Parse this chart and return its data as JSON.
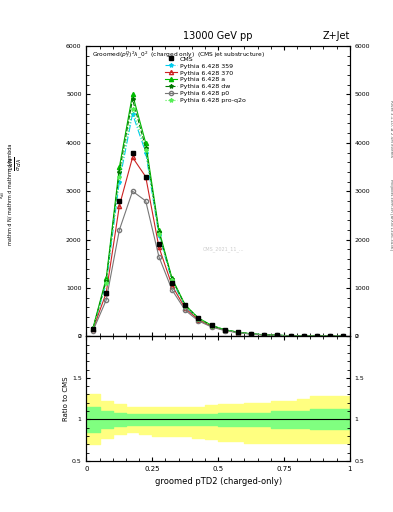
{
  "title_top": "13000 GeV pp",
  "title_right": "Z+Jet",
  "plot_title": "Groomed$(p_T^D)^2\\lambda\\_0^2$  (charged only)  (CMS jet substructure)",
  "xlabel": "groomed pTD2 (charged-only)",
  "right_label_top": "Rivet 3.1.10, ≥ 2.5M events",
  "right_label_bot": "mcplots.cern.ch [arXiv:1306.3436]",
  "cms_x": [
    0.025,
    0.075,
    0.125,
    0.175,
    0.225,
    0.275,
    0.325,
    0.375,
    0.425,
    0.475,
    0.525,
    0.575,
    0.625,
    0.675,
    0.725,
    0.775,
    0.825,
    0.875,
    0.925,
    0.975
  ],
  "cms_y": [
    150,
    900,
    2800,
    3800,
    3300,
    1900,
    1100,
    650,
    380,
    230,
    140,
    90,
    55,
    35,
    25,
    15,
    10,
    7,
    5,
    3
  ],
  "py359_y": [
    160,
    1100,
    3200,
    4600,
    3800,
    2100,
    1150,
    620,
    360,
    215,
    130,
    82,
    50,
    32,
    22,
    14,
    10,
    7,
    4,
    2
  ],
  "py370_y": [
    150,
    900,
    2700,
    3700,
    3300,
    1850,
    1050,
    580,
    345,
    208,
    127,
    80,
    49,
    31,
    21,
    13,
    10,
    7,
    4,
    2
  ],
  "pya_y": [
    180,
    1200,
    3500,
    5000,
    4000,
    2200,
    1200,
    650,
    380,
    228,
    138,
    88,
    53,
    34,
    24,
    15,
    11,
    8,
    5,
    3
  ],
  "pydw_y": [
    170,
    1150,
    3400,
    4900,
    3900,
    2150,
    1180,
    640,
    375,
    224,
    136,
    86,
    52,
    33,
    23,
    14,
    11,
    7,
    4,
    2
  ],
  "pyp0_y": [
    120,
    750,
    2200,
    3000,
    2800,
    1650,
    960,
    540,
    320,
    195,
    120,
    77,
    47,
    30,
    21,
    13,
    9,
    6,
    4,
    2
  ],
  "pyq2o_y": [
    165,
    1100,
    3300,
    4700,
    3850,
    2120,
    1160,
    630,
    368,
    221,
    134,
    84,
    51,
    33,
    22,
    14,
    10,
    7,
    4,
    2
  ],
  "ratio_x_edges": [
    0.0,
    0.05,
    0.1,
    0.15,
    0.2,
    0.25,
    0.3,
    0.35,
    0.4,
    0.45,
    0.5,
    0.55,
    0.6,
    0.65,
    0.7,
    0.75,
    0.8,
    0.85,
    0.9,
    0.95,
    1.0
  ],
  "ratio_green_upper": [
    1.15,
    1.1,
    1.08,
    1.07,
    1.07,
    1.07,
    1.07,
    1.07,
    1.07,
    1.07,
    1.08,
    1.08,
    1.08,
    1.08,
    1.1,
    1.1,
    1.1,
    1.12,
    1.12,
    1.12
  ],
  "ratio_green_lower": [
    0.85,
    0.9,
    0.92,
    0.93,
    0.93,
    0.93,
    0.93,
    0.93,
    0.93,
    0.93,
    0.92,
    0.92,
    0.92,
    0.92,
    0.9,
    0.9,
    0.9,
    0.88,
    0.88,
    0.88
  ],
  "ratio_yellow_upper": [
    1.3,
    1.22,
    1.18,
    1.15,
    1.15,
    1.15,
    1.15,
    1.15,
    1.15,
    1.17,
    1.18,
    1.18,
    1.2,
    1.2,
    1.22,
    1.22,
    1.25,
    1.28,
    1.28,
    1.28
  ],
  "ratio_yellow_lower": [
    0.7,
    0.78,
    0.82,
    0.85,
    0.82,
    0.8,
    0.8,
    0.8,
    0.78,
    0.76,
    0.74,
    0.74,
    0.72,
    0.72,
    0.72,
    0.72,
    0.72,
    0.72,
    0.72,
    0.72
  ],
  "color_359": "#00CCEE",
  "color_370": "#CC2222",
  "color_a": "#00BB00",
  "color_dw": "#007700",
  "color_p0": "#777777",
  "color_q2o": "#55EE55",
  "ylim_main": [
    0,
    6000
  ],
  "ylim_ratio": [
    0.5,
    2.0
  ],
  "xlim": [
    0.0,
    1.0
  ]
}
